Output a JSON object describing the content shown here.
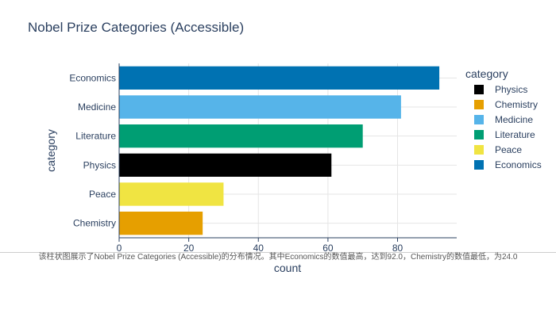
{
  "chart_data": {
    "type": "bar",
    "orientation": "horizontal",
    "title": "Nobel Prize Categories (Accessible)",
    "xlabel": "count",
    "ylabel": "category",
    "xlim": [
      0,
      97
    ],
    "xticks": [
      0,
      20,
      40,
      60,
      80
    ],
    "grid": true,
    "categories": [
      "Chemistry",
      "Peace",
      "Physics",
      "Literature",
      "Medicine",
      "Economics"
    ],
    "values": [
      24.0,
      30.0,
      61.0,
      70.0,
      81.0,
      92.0
    ],
    "colors": [
      "#E69F00",
      "#F0E442",
      "#000000",
      "#009E73",
      "#56B4E9",
      "#0072B2"
    ],
    "legend": {
      "title": "category",
      "placement": "right",
      "entries": [
        {
          "name": "Physics",
          "color": "#000000"
        },
        {
          "name": "Chemistry",
          "color": "#E69F00"
        },
        {
          "name": "Medicine",
          "color": "#56B4E9"
        },
        {
          "name": "Literature",
          "color": "#009E73"
        },
        {
          "name": "Peace",
          "color": "#F0E442"
        },
        {
          "name": "Economics",
          "color": "#0072B2"
        }
      ]
    }
  },
  "caption": "该柱状图展示了Nobel Prize Categories (Accessible)的分布情况。其中Economics的数值最高，达到92.0，Chemistry的数值最低，为24.0"
}
